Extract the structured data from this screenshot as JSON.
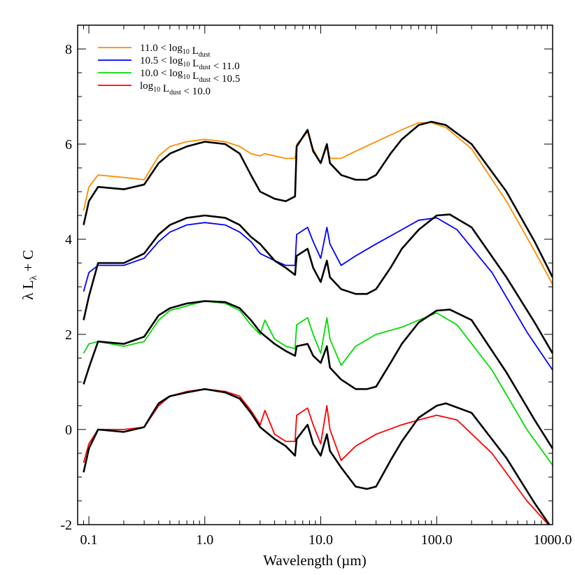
{
  "chart_data": {
    "type": "line",
    "title": "",
    "xlabel": "Wavelength (µm)",
    "ylabel_parts": {
      "main": "λ L",
      "sub": "λ",
      "tail": " + C"
    },
    "x_scale": "log",
    "xlim": [
      0.08,
      1000
    ],
    "ylim": [
      -2,
      8.5
    ],
    "x_tick_values": [
      0.1,
      1,
      10,
      100,
      1000
    ],
    "x_tick_labels": [
      "0.1",
      "1.0",
      "10.0",
      "100.0",
      "1000.0"
    ],
    "y_tick_values": [
      -2,
      0,
      2,
      4,
      6,
      8
    ],
    "y_tick_labels": [
      "-2",
      "0",
      "2",
      "4",
      "6",
      "8"
    ],
    "grid": false,
    "legend_position": "top-left",
    "legend": [
      {
        "color": "#ff8c00",
        "parts": [
          [
            "11.0 < log",
            ""
          ],
          [
            "10",
            "sub"
          ],
          [
            " L",
            ""
          ],
          [
            "dust",
            "sub"
          ]
        ]
      },
      {
        "color": "#0000ff",
        "parts": [
          [
            "10.5 < log",
            ""
          ],
          [
            "10",
            "sub"
          ],
          [
            " L",
            ""
          ],
          [
            "dust",
            "sub"
          ],
          [
            " < 11.0",
            ""
          ]
        ]
      },
      {
        "color": "#00dd00",
        "parts": [
          [
            "10.0 < log",
            ""
          ],
          [
            "10",
            "sub"
          ],
          [
            " L",
            ""
          ],
          [
            "dust",
            "sub"
          ],
          [
            " < 10.5",
            ""
          ]
        ]
      },
      {
        "color": "#ff0000",
        "parts": [
          [
            "log",
            ""
          ],
          [
            "10",
            "sub"
          ],
          [
            " L",
            ""
          ],
          [
            "dust",
            "sub"
          ],
          [
            " < 10.0",
            ""
          ]
        ]
      }
    ],
    "series": [
      {
        "color": "#ff8c00",
        "x": [
          0.09,
          0.1,
          0.12,
          0.2,
          0.3,
          0.4,
          0.5,
          0.7,
          1.0,
          1.5,
          2.0,
          2.5,
          3.0,
          3.3,
          4.0,
          5.0,
          6.0,
          6.2,
          7.7,
          8.6,
          10.0,
          11.3,
          12.0,
          15.0,
          20.0,
          30.0,
          50.0,
          70.0,
          90.0,
          120.0,
          200.0,
          400.0,
          700.0,
          1000.0
        ],
        "y": [
          4.6,
          5.1,
          5.35,
          5.3,
          5.25,
          5.75,
          5.95,
          6.05,
          6.1,
          6.05,
          5.95,
          5.8,
          5.75,
          5.8,
          5.75,
          5.7,
          5.7,
          6.0,
          6.25,
          5.9,
          5.6,
          5.95,
          5.7,
          5.7,
          5.85,
          6.05,
          6.3,
          6.45,
          6.45,
          6.35,
          5.9,
          4.8,
          3.75,
          3.05
        ]
      },
      {
        "color": "#000000",
        "x": [
          0.09,
          0.1,
          0.12,
          0.2,
          0.3,
          0.4,
          0.5,
          0.7,
          1.0,
          1.5,
          2.0,
          2.5,
          3.0,
          4.0,
          5.0,
          6.0,
          6.2,
          7.7,
          8.6,
          10.0,
          11.3,
          12.0,
          15.0,
          20.0,
          25.0,
          30.0,
          40.0,
          50.0,
          70.0,
          90.0,
          120.0,
          200.0,
          400.0,
          700.0,
          1000.0
        ],
        "y": [
          4.3,
          4.8,
          5.1,
          5.05,
          5.15,
          5.6,
          5.8,
          5.95,
          6.05,
          6.0,
          5.8,
          5.35,
          5.0,
          4.85,
          4.8,
          4.9,
          5.95,
          6.3,
          5.85,
          5.6,
          6.0,
          5.6,
          5.35,
          5.25,
          5.25,
          5.35,
          5.8,
          6.1,
          6.4,
          6.47,
          6.4,
          6.0,
          5.0,
          3.95,
          3.2
        ]
      },
      {
        "color": "#0000ff",
        "x": [
          0.09,
          0.1,
          0.12,
          0.2,
          0.3,
          0.4,
          0.5,
          0.7,
          1.0,
          1.5,
          2.0,
          2.5,
          3.0,
          3.3,
          4.0,
          5.0,
          6.0,
          6.2,
          7.7,
          8.6,
          10.0,
          11.3,
          12.0,
          15.0,
          20.0,
          30.0,
          50.0,
          70.0,
          100.0,
          150.0,
          300.0,
          600.0,
          1000.0
        ],
        "y": [
          2.9,
          3.3,
          3.45,
          3.45,
          3.6,
          3.95,
          4.15,
          4.3,
          4.35,
          4.3,
          4.15,
          3.95,
          3.7,
          3.65,
          3.55,
          3.45,
          3.45,
          4.1,
          4.25,
          3.95,
          3.6,
          4.25,
          3.9,
          3.45,
          3.65,
          3.9,
          4.2,
          4.4,
          4.45,
          4.2,
          3.3,
          2.05,
          1.25
        ]
      },
      {
        "color": "#000000",
        "x": [
          0.09,
          0.1,
          0.12,
          0.2,
          0.3,
          0.4,
          0.5,
          0.7,
          1.0,
          1.5,
          2.0,
          2.5,
          3.0,
          4.0,
          5.0,
          6.0,
          6.2,
          7.7,
          8.6,
          10.0,
          11.3,
          12.0,
          15.0,
          20.0,
          25.0,
          30.0,
          40.0,
          50.0,
          70.0,
          100.0,
          130.0,
          200.0,
          400.0,
          700.0,
          1000.0
        ],
        "y": [
          2.3,
          2.8,
          3.5,
          3.5,
          3.7,
          4.1,
          4.3,
          4.45,
          4.5,
          4.45,
          4.3,
          4.05,
          3.9,
          3.55,
          3.4,
          3.25,
          3.65,
          3.8,
          3.4,
          3.1,
          3.55,
          3.2,
          2.95,
          2.85,
          2.85,
          2.95,
          3.4,
          3.8,
          4.2,
          4.5,
          4.52,
          4.25,
          3.2,
          2.25,
          1.6
        ]
      },
      {
        "color": "#00dd00",
        "x": [
          0.09,
          0.1,
          0.12,
          0.2,
          0.3,
          0.4,
          0.5,
          0.7,
          1.0,
          1.5,
          2.0,
          2.5,
          3.0,
          3.3,
          4.0,
          5.0,
          6.0,
          6.2,
          7.7,
          8.6,
          10.0,
          11.3,
          12.0,
          15.0,
          20.0,
          30.0,
          50.0,
          70.0,
          100.0,
          150.0,
          300.0,
          600.0,
          1000.0
        ],
        "y": [
          1.6,
          1.8,
          1.85,
          1.75,
          1.85,
          2.3,
          2.5,
          2.6,
          2.7,
          2.65,
          2.5,
          2.2,
          2.0,
          2.3,
          1.9,
          1.75,
          1.7,
          2.2,
          2.35,
          2.0,
          1.6,
          2.35,
          1.9,
          1.35,
          1.75,
          2.0,
          2.15,
          2.3,
          2.45,
          2.2,
          1.25,
          0.0,
          -0.75
        ]
      },
      {
        "color": "#000000",
        "x": [
          0.09,
          0.1,
          0.12,
          0.2,
          0.3,
          0.4,
          0.5,
          0.7,
          1.0,
          1.5,
          2.0,
          2.5,
          3.0,
          4.0,
          5.0,
          6.0,
          6.2,
          7.7,
          8.6,
          10.0,
          11.3,
          12.0,
          15.0,
          20.0,
          25.0,
          30.0,
          40.0,
          50.0,
          70.0,
          100.0,
          130.0,
          200.0,
          400.0,
          700.0,
          1000.0
        ],
        "y": [
          0.95,
          1.3,
          1.85,
          1.8,
          1.95,
          2.4,
          2.55,
          2.65,
          2.7,
          2.68,
          2.55,
          2.3,
          2.05,
          1.8,
          1.65,
          1.55,
          1.75,
          1.8,
          1.55,
          1.4,
          1.75,
          1.3,
          1.05,
          0.85,
          0.85,
          0.9,
          1.4,
          1.8,
          2.25,
          2.5,
          2.52,
          2.3,
          1.2,
          0.2,
          -0.4
        ]
      },
      {
        "color": "#ff0000",
        "x": [
          0.09,
          0.1,
          0.12,
          0.2,
          0.3,
          0.4,
          0.5,
          0.7,
          1.0,
          1.5,
          2.0,
          2.5,
          3.0,
          3.3,
          4.0,
          5.0,
          6.0,
          6.2,
          7.7,
          8.6,
          10.0,
          11.3,
          12.0,
          15.0,
          20.0,
          30.0,
          50.0,
          70.0,
          100.0,
          150.0,
          300.0,
          600.0,
          1000.0
        ],
        "y": [
          -0.7,
          -0.3,
          0.0,
          0.0,
          0.05,
          0.5,
          0.7,
          0.8,
          0.85,
          0.8,
          0.7,
          0.4,
          0.1,
          0.4,
          -0.1,
          -0.25,
          -0.25,
          0.3,
          0.45,
          0.1,
          -0.3,
          0.5,
          0.0,
          -0.65,
          -0.35,
          -0.1,
          0.1,
          0.2,
          0.3,
          0.2,
          -0.5,
          -1.5,
          -2.1
        ]
      },
      {
        "color": "#000000",
        "x": [
          0.09,
          0.1,
          0.12,
          0.2,
          0.3,
          0.4,
          0.5,
          0.7,
          1.0,
          1.5,
          2.0,
          2.5,
          3.0,
          4.0,
          5.0,
          6.0,
          6.2,
          7.7,
          8.6,
          10.0,
          11.3,
          12.0,
          15.0,
          20.0,
          25.0,
          30.0,
          40.0,
          50.0,
          70.0,
          100.0,
          120.0,
          200.0,
          400.0,
          700.0,
          1000.0
        ],
        "y": [
          -0.9,
          -0.4,
          0.0,
          -0.05,
          0.05,
          0.55,
          0.7,
          0.78,
          0.85,
          0.78,
          0.65,
          0.35,
          0.05,
          -0.2,
          -0.35,
          -0.55,
          -0.2,
          0.1,
          -0.3,
          -0.55,
          -0.1,
          -0.45,
          -0.8,
          -1.2,
          -1.25,
          -1.2,
          -0.65,
          -0.25,
          0.25,
          0.5,
          0.55,
          0.35,
          -0.6,
          -1.55,
          -2.1
        ]
      }
    ]
  }
}
